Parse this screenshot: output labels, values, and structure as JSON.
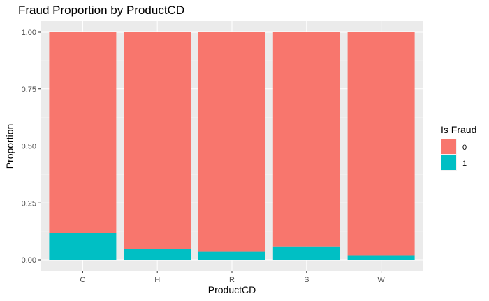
{
  "chart_data": {
    "type": "bar",
    "stacked": true,
    "title": "Fraud Proportion by ProductCD",
    "xlabel": "ProductCD",
    "ylabel": "Proportion",
    "categories": [
      "C",
      "H",
      "R",
      "S",
      "W"
    ],
    "ylim": [
      0,
      1
    ],
    "yticks": [
      "0.00",
      "0.25",
      "0.50",
      "0.75",
      "1.00"
    ],
    "series": [
      {
        "name": "0",
        "values": [
          0.883,
          0.952,
          0.962,
          0.941,
          0.98
        ],
        "color": "#F8766D"
      },
      {
        "name": "1",
        "values": [
          0.117,
          0.048,
          0.038,
          0.059,
          0.02
        ],
        "color": "#00BFC4"
      }
    ],
    "legend": {
      "title": "Is Fraud",
      "position": "right"
    },
    "grid": true
  }
}
